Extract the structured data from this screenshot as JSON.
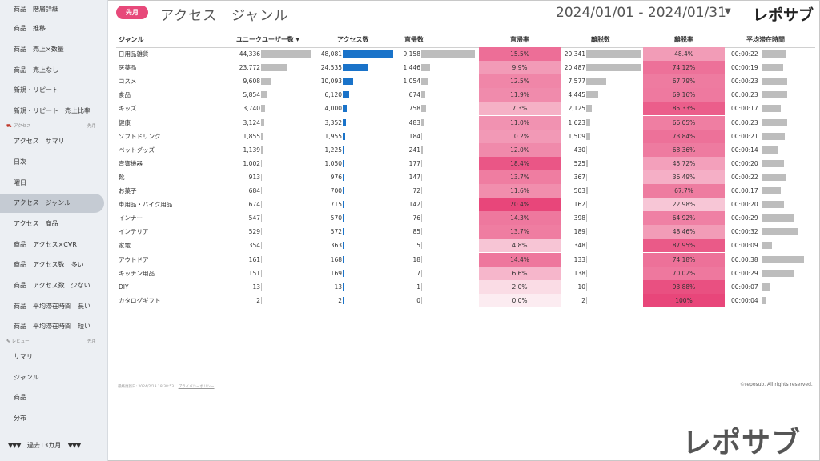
{
  "sidebar": {
    "items_top": [
      "商品　階層詳細",
      "商品　推移",
      "商品　売上×数量",
      "商品　売上なし",
      "新規・リピート",
      "新規・リピート　売上比率"
    ],
    "section_access": {
      "label": "アクセス",
      "period": "先月"
    },
    "items_access": [
      "アクセス　サマリ",
      "日次",
      "曜日",
      "アクセス　ジャンル",
      "アクセス　商品",
      "商品　アクセス×CVR",
      "商品　アクセス数　多い",
      "商品　アクセス数　少ない",
      "商品　平均滞在時間　長い",
      "商品　平均滞在時間　短い"
    ],
    "section_review": {
      "label": "レビュー",
      "period": "先月"
    },
    "items_review": [
      "サマリ",
      "ジャンル",
      "商品",
      "分布"
    ],
    "footer": {
      "label": "過去13カ月"
    }
  },
  "header": {
    "badge": "先月",
    "title": "アクセス　ジャンル",
    "date_range": "2024/01/01 - 2024/01/31",
    "logo": "レポサブ"
  },
  "colors": {
    "accent": "#e7497a",
    "bar_blue": "#1a73c9",
    "bar_gray": "#bdbdbd"
  },
  "table": {
    "headers": [
      "ジャンル",
      "ユニークユーザー数 ▾",
      "アクセス数",
      "直帰数",
      "直帰率",
      "離脱数",
      "離脱率",
      "平均滞在時間"
    ],
    "rows": [
      [
        "日用品雑貨",
        "44,336",
        "48,081",
        "9,158",
        "15.5%",
        "20,341",
        "48.4%",
        "00:00:22"
      ],
      [
        "医薬品",
        "23,772",
        "24,535",
        "1,446",
        "9.9%",
        "20,487",
        "74.12%",
        "00:00:19"
      ],
      [
        "コスメ",
        "9,608",
        "10,093",
        "1,054",
        "12.5%",
        "7,577",
        "67.79%",
        "00:00:23"
      ],
      [
        "食品",
        "5,854",
        "6,120",
        "674",
        "11.9%",
        "4,445",
        "69.16%",
        "00:00:23"
      ],
      [
        "キッズ",
        "3,740",
        "4,000",
        "758",
        "7.3%",
        "2,125",
        "85.33%",
        "00:00:17"
      ],
      [
        "健康",
        "3,124",
        "3,352",
        "483",
        "11.0%",
        "1,623",
        "66.05%",
        "00:00:23"
      ],
      [
        "ソフトドリンク",
        "1,855",
        "1,955",
        "184",
        "10.2%",
        "1,509",
        "73.84%",
        "00:00:21"
      ],
      [
        "ペットグッズ",
        "1,139",
        "1,225",
        "241",
        "12.0%",
        "430",
        "68.36%",
        "00:00:14"
      ],
      [
        "音響機器",
        "1,002",
        "1,050",
        "177",
        "18.4%",
        "525",
        "45.72%",
        "00:00:20"
      ],
      [
        "靴",
        "913",
        "976",
        "147",
        "13.7%",
        "367",
        "36.49%",
        "00:00:22"
      ],
      [
        "お菓子",
        "684",
        "700",
        "72",
        "11.6%",
        "503",
        "67.7%",
        "00:00:17"
      ],
      [
        "車用品・バイク用品",
        "674",
        "715",
        "142",
        "20.4%",
        "162",
        "22.98%",
        "00:00:20"
      ],
      [
        "インナー",
        "547",
        "570",
        "76",
        "14.3%",
        "398",
        "64.92%",
        "00:00:29"
      ],
      [
        "インテリア",
        "529",
        "572",
        "85",
        "13.7%",
        "189",
        "48.46%",
        "00:00:32"
      ],
      [
        "家電",
        "354",
        "363",
        "5",
        "4.8%",
        "348",
        "87.95%",
        "00:00:09"
      ],
      [
        "アウトドア",
        "161",
        "168",
        "18",
        "14.4%",
        "133",
        "74.18%",
        "00:00:38"
      ],
      [
        "キッチン用品",
        "151",
        "169",
        "7",
        "6.6%",
        "138",
        "70.02%",
        "00:00:29"
      ],
      [
        "DIY",
        "13",
        "13",
        "1",
        "2.0%",
        "10",
        "93.88%",
        "00:00:07"
      ],
      [
        "カタログギフト",
        "2",
        "2",
        "0",
        "0.0%",
        "2",
        "100%",
        "00:00:04"
      ]
    ]
  },
  "footer": {
    "updated": "最終更新日: 2024/2/13 18:38:53",
    "privacy": "プライバシーポリシー",
    "copyright": "©reposub. All rights reserved.",
    "big_logo": "レポサブ"
  }
}
